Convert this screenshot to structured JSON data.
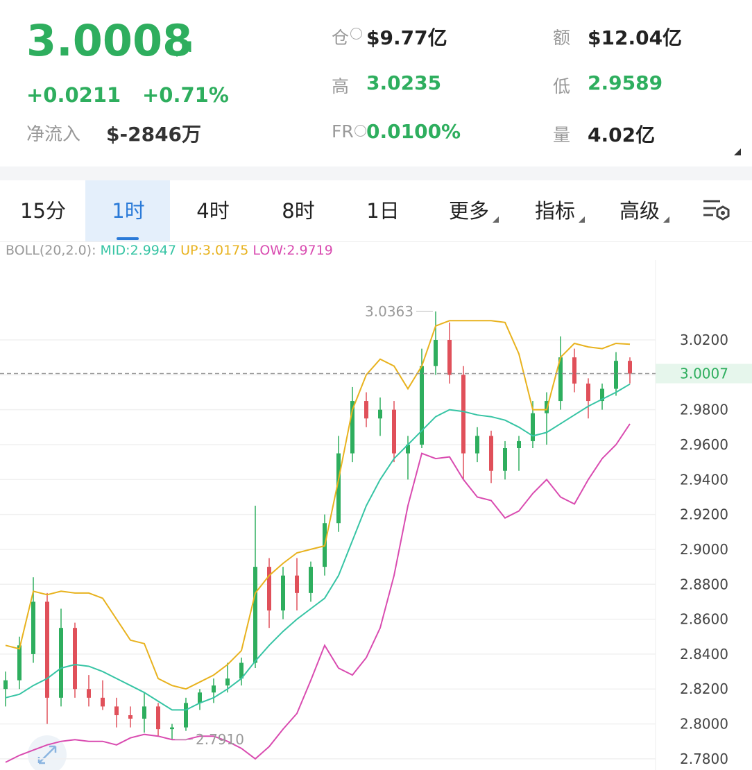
{
  "header": {
    "price": "3.0008",
    "change": "+0.0211",
    "change_pct": "+0.71%",
    "net_inflow_label": "净流入",
    "net_inflow": "$-2846万",
    "stats": [
      {
        "label": "仓",
        "value": "$9.77亿"
      },
      {
        "label": "额",
        "value": "$12.04亿"
      },
      {
        "label": "高",
        "value": "3.0235"
      },
      {
        "label": "低",
        "value": "2.9589"
      },
      {
        "label": "FR",
        "value": "0.0100%"
      },
      {
        "label": "量",
        "value": "4.02亿"
      }
    ]
  },
  "tabs": [
    "15分",
    "1时",
    "4时",
    "8时",
    "1日",
    "更多",
    "指标",
    "高级"
  ],
  "chart_data": {
    "type": "candlestick",
    "indicator": "BOLL(20,2.0):",
    "up_color": "#2eae5e",
    "down_color": "#e0505a",
    "open": [
      2.82,
      2.825,
      2.84,
      2.87,
      2.815,
      2.855,
      2.82,
      2.815,
      2.81,
      2.805,
      2.803,
      2.81,
      2.797,
      2.798,
      2.812,
      2.818,
      2.822,
      2.826,
      2.835,
      2.89,
      2.865,
      2.885,
      2.875,
      2.89,
      2.915,
      2.955,
      2.985,
      2.975,
      2.98,
      2.955,
      2.96,
      3.005,
      3.02,
      3.0,
      2.955,
      2.965,
      2.945,
      2.958,
      2.962,
      2.978,
      2.985,
      3.01,
      2.995,
      2.985,
      2.992,
      3.008
    ],
    "high": [
      2.83,
      2.85,
      2.884,
      2.875,
      2.866,
      2.858,
      2.828,
      2.825,
      2.815,
      2.81,
      2.818,
      2.812,
      2.8,
      2.815,
      2.82,
      2.826,
      2.835,
      2.838,
      2.925,
      2.895,
      2.89,
      2.895,
      2.893,
      2.92,
      2.965,
      2.993,
      2.99,
      2.987,
      2.985,
      2.965,
      3.015,
      3.0363,
      3.03,
      3.005,
      2.97,
      2.968,
      2.962,
      2.965,
      2.985,
      2.99,
      3.022,
      3.015,
      2.998,
      2.995,
      3.013,
      3.01
    ],
    "low": [
      2.81,
      2.82,
      2.835,
      2.8,
      2.81,
      2.815,
      2.81,
      2.808,
      2.798,
      2.798,
      2.795,
      2.793,
      2.791,
      2.796,
      2.808,
      2.812,
      2.818,
      2.822,
      2.832,
      2.855,
      2.86,
      2.865,
      2.87,
      2.885,
      2.91,
      2.95,
      2.97,
      2.965,
      2.95,
      2.94,
      2.958,
      3.0,
      2.995,
      2.94,
      2.95,
      2.938,
      2.94,
      2.945,
      2.958,
      2.96,
      2.98,
      2.99,
      2.975,
      2.98,
      2.988,
      2.995
    ],
    "close": [
      2.825,
      2.845,
      2.87,
      2.815,
      2.855,
      2.82,
      2.815,
      2.81,
      2.805,
      2.803,
      2.81,
      2.797,
      2.798,
      2.812,
      2.818,
      2.822,
      2.826,
      2.835,
      2.89,
      2.865,
      2.885,
      2.875,
      2.89,
      2.915,
      2.955,
      2.985,
      2.975,
      2.98,
      2.955,
      2.96,
      3.005,
      3.02,
      3.0,
      2.955,
      2.965,
      2.945,
      2.958,
      2.962,
      2.978,
      2.985,
      3.01,
      2.995,
      2.985,
      2.992,
      3.008,
      3.0007
    ],
    "lines": [
      {
        "label": "MID:2.9947",
        "color": "#36c4a4",
        "values": [
          2.815,
          2.817,
          2.822,
          2.826,
          2.832,
          2.834,
          2.833,
          2.83,
          2.826,
          2.822,
          2.818,
          2.813,
          2.808,
          2.808,
          2.812,
          2.815,
          2.82,
          2.826,
          2.836,
          2.845,
          2.853,
          2.86,
          2.866,
          2.872,
          2.885,
          2.905,
          2.925,
          2.94,
          2.952,
          2.96,
          2.968,
          2.976,
          2.98,
          2.979,
          2.977,
          2.976,
          2.974,
          2.97,
          2.965,
          2.967,
          2.972,
          2.977,
          2.982,
          2.986,
          2.99,
          2.9947
        ]
      },
      {
        "label": "UP:3.0175",
        "color": "#e8b21e",
        "values": [
          2.845,
          2.843,
          2.876,
          2.874,
          2.876,
          2.875,
          2.875,
          2.872,
          2.86,
          2.848,
          2.846,
          2.826,
          2.822,
          2.82,
          2.824,
          2.828,
          2.834,
          2.842,
          2.875,
          2.885,
          2.892,
          2.898,
          2.9,
          2.902,
          2.94,
          2.98,
          3.0,
          3.009,
          3.005,
          2.992,
          3.005,
          3.028,
          3.031,
          3.031,
          3.031,
          3.031,
          3.03,
          3.012,
          2.98,
          2.98,
          3.01,
          3.018,
          3.016,
          3.015,
          3.018,
          3.0175
        ]
      },
      {
        "label": "LOW:2.9719",
        "color": "#d94bb0",
        "values": [
          2.778,
          2.782,
          2.785,
          2.788,
          2.79,
          2.791,
          2.79,
          2.79,
          2.788,
          2.792,
          2.794,
          2.793,
          2.791,
          2.791,
          2.793,
          2.793,
          2.79,
          2.786,
          2.78,
          2.787,
          2.797,
          2.806,
          2.825,
          2.845,
          2.832,
          2.828,
          2.838,
          2.855,
          2.885,
          2.925,
          2.955,
          2.952,
          2.953,
          2.94,
          2.93,
          2.928,
          2.918,
          2.922,
          2.932,
          2.94,
          2.93,
          2.926,
          2.94,
          2.952,
          2.96,
          2.9719
        ]
      }
    ],
    "current_price": 3.0007,
    "max_label": 3.0363,
    "min_label": {
      "value": 2.791,
      "label": "2.7910"
    },
    "ylim": [
      2.7736,
      3.0657
    ],
    "yticks": [
      {
        "value": 2.78,
        "label": "2.7800"
      },
      {
        "value": 2.8,
        "label": "2.8000"
      },
      {
        "value": 2.82,
        "label": "2.8200"
      },
      {
        "value": 2.84,
        "label": "2.8400"
      },
      {
        "value": 2.86,
        "label": "2.8600"
      },
      {
        "value": 2.88,
        "label": "2.8800"
      },
      {
        "value": 2.9,
        "label": "2.9000"
      },
      {
        "value": 2.92,
        "label": "2.9200"
      },
      {
        "value": 2.94,
        "label": "2.9400"
      },
      {
        "value": 2.96,
        "label": "2.9600"
      },
      {
        "value": 2.98,
        "label": "2.9800"
      },
      {
        "value": 3.0,
        "label": "3.0000"
      },
      {
        "value": 3.02,
        "label": "3.0200"
      }
    ],
    "grid": true
  }
}
